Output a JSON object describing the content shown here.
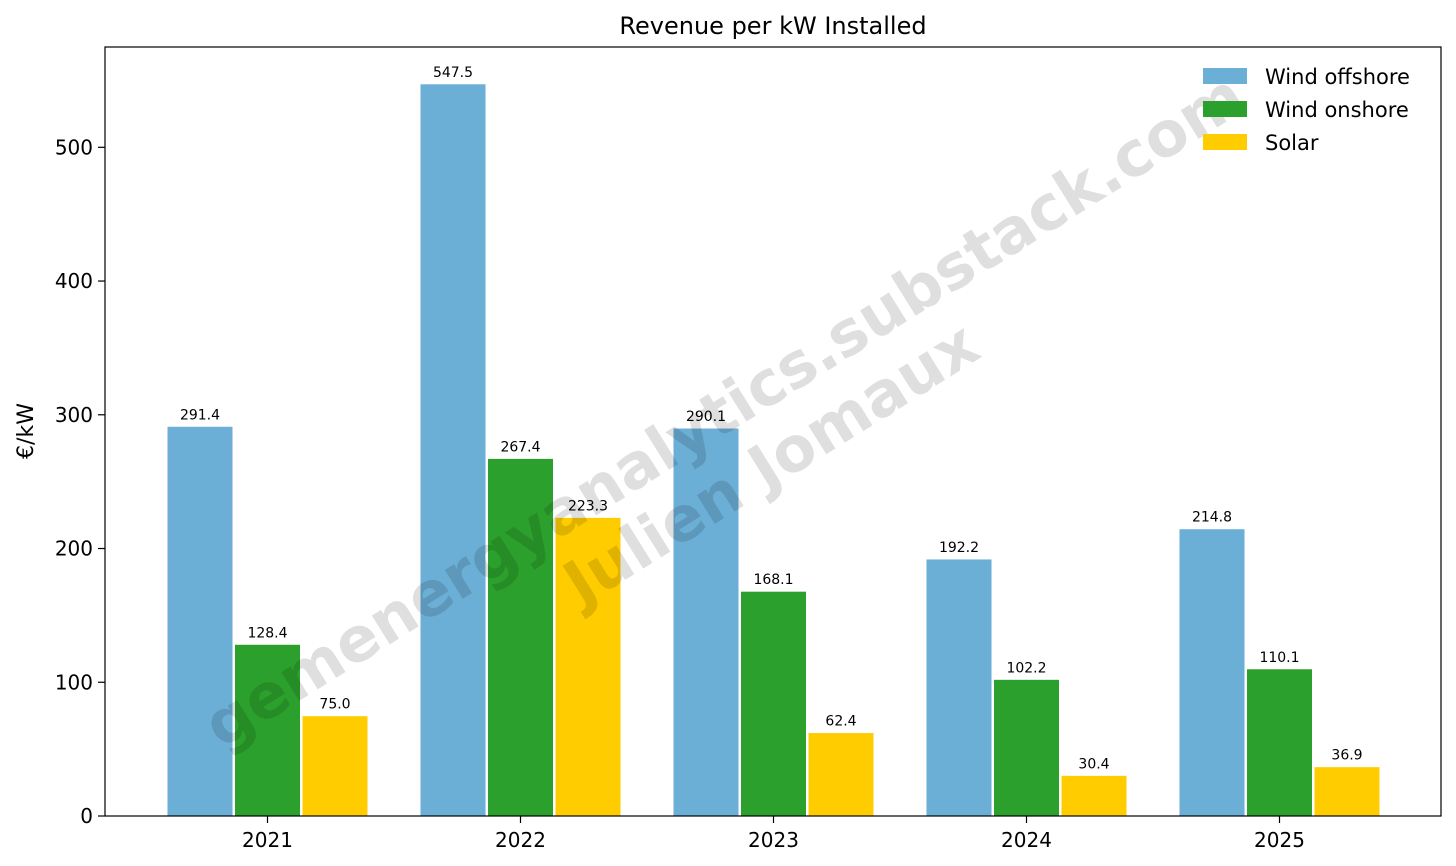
{
  "chart_data": {
    "type": "bar",
    "title": "Revenue per kW Installed",
    "xlabel": "",
    "ylabel": "€/kW",
    "ylim": [
      0,
      575
    ],
    "yticks": [
      0,
      100,
      200,
      300,
      400,
      500
    ],
    "grid": false,
    "legend_position": "top-right",
    "categories": [
      "2021",
      "2022",
      "2023",
      "2024",
      "2025"
    ],
    "series": [
      {
        "name": "Wind offshore",
        "color": "#6baed6",
        "values": [
          291.4,
          547.5,
          290.1,
          192.2,
          214.8
        ],
        "labels": [
          "291.4",
          "547.5",
          "290.1",
          "192.2",
          "214.8"
        ]
      },
      {
        "name": "Wind onshore",
        "color": "#2ca02c",
        "values": [
          128.4,
          267.4,
          168.1,
          102.2,
          110.1
        ],
        "labels": [
          "128.4",
          "267.4",
          "168.1",
          "102.2",
          "110.1"
        ]
      },
      {
        "name": "Solar",
        "color": "#ffcc00",
        "values": [
          75.0,
          223.3,
          62.4,
          30.4,
          36.9
        ],
        "labels": [
          "75.0",
          "223.3",
          "62.4",
          "30.4",
          "36.9"
        ]
      }
    ]
  },
  "watermark": {
    "line1": "gemenergyanalytics.substack.com",
    "line2": "Julien Jomaux"
  }
}
